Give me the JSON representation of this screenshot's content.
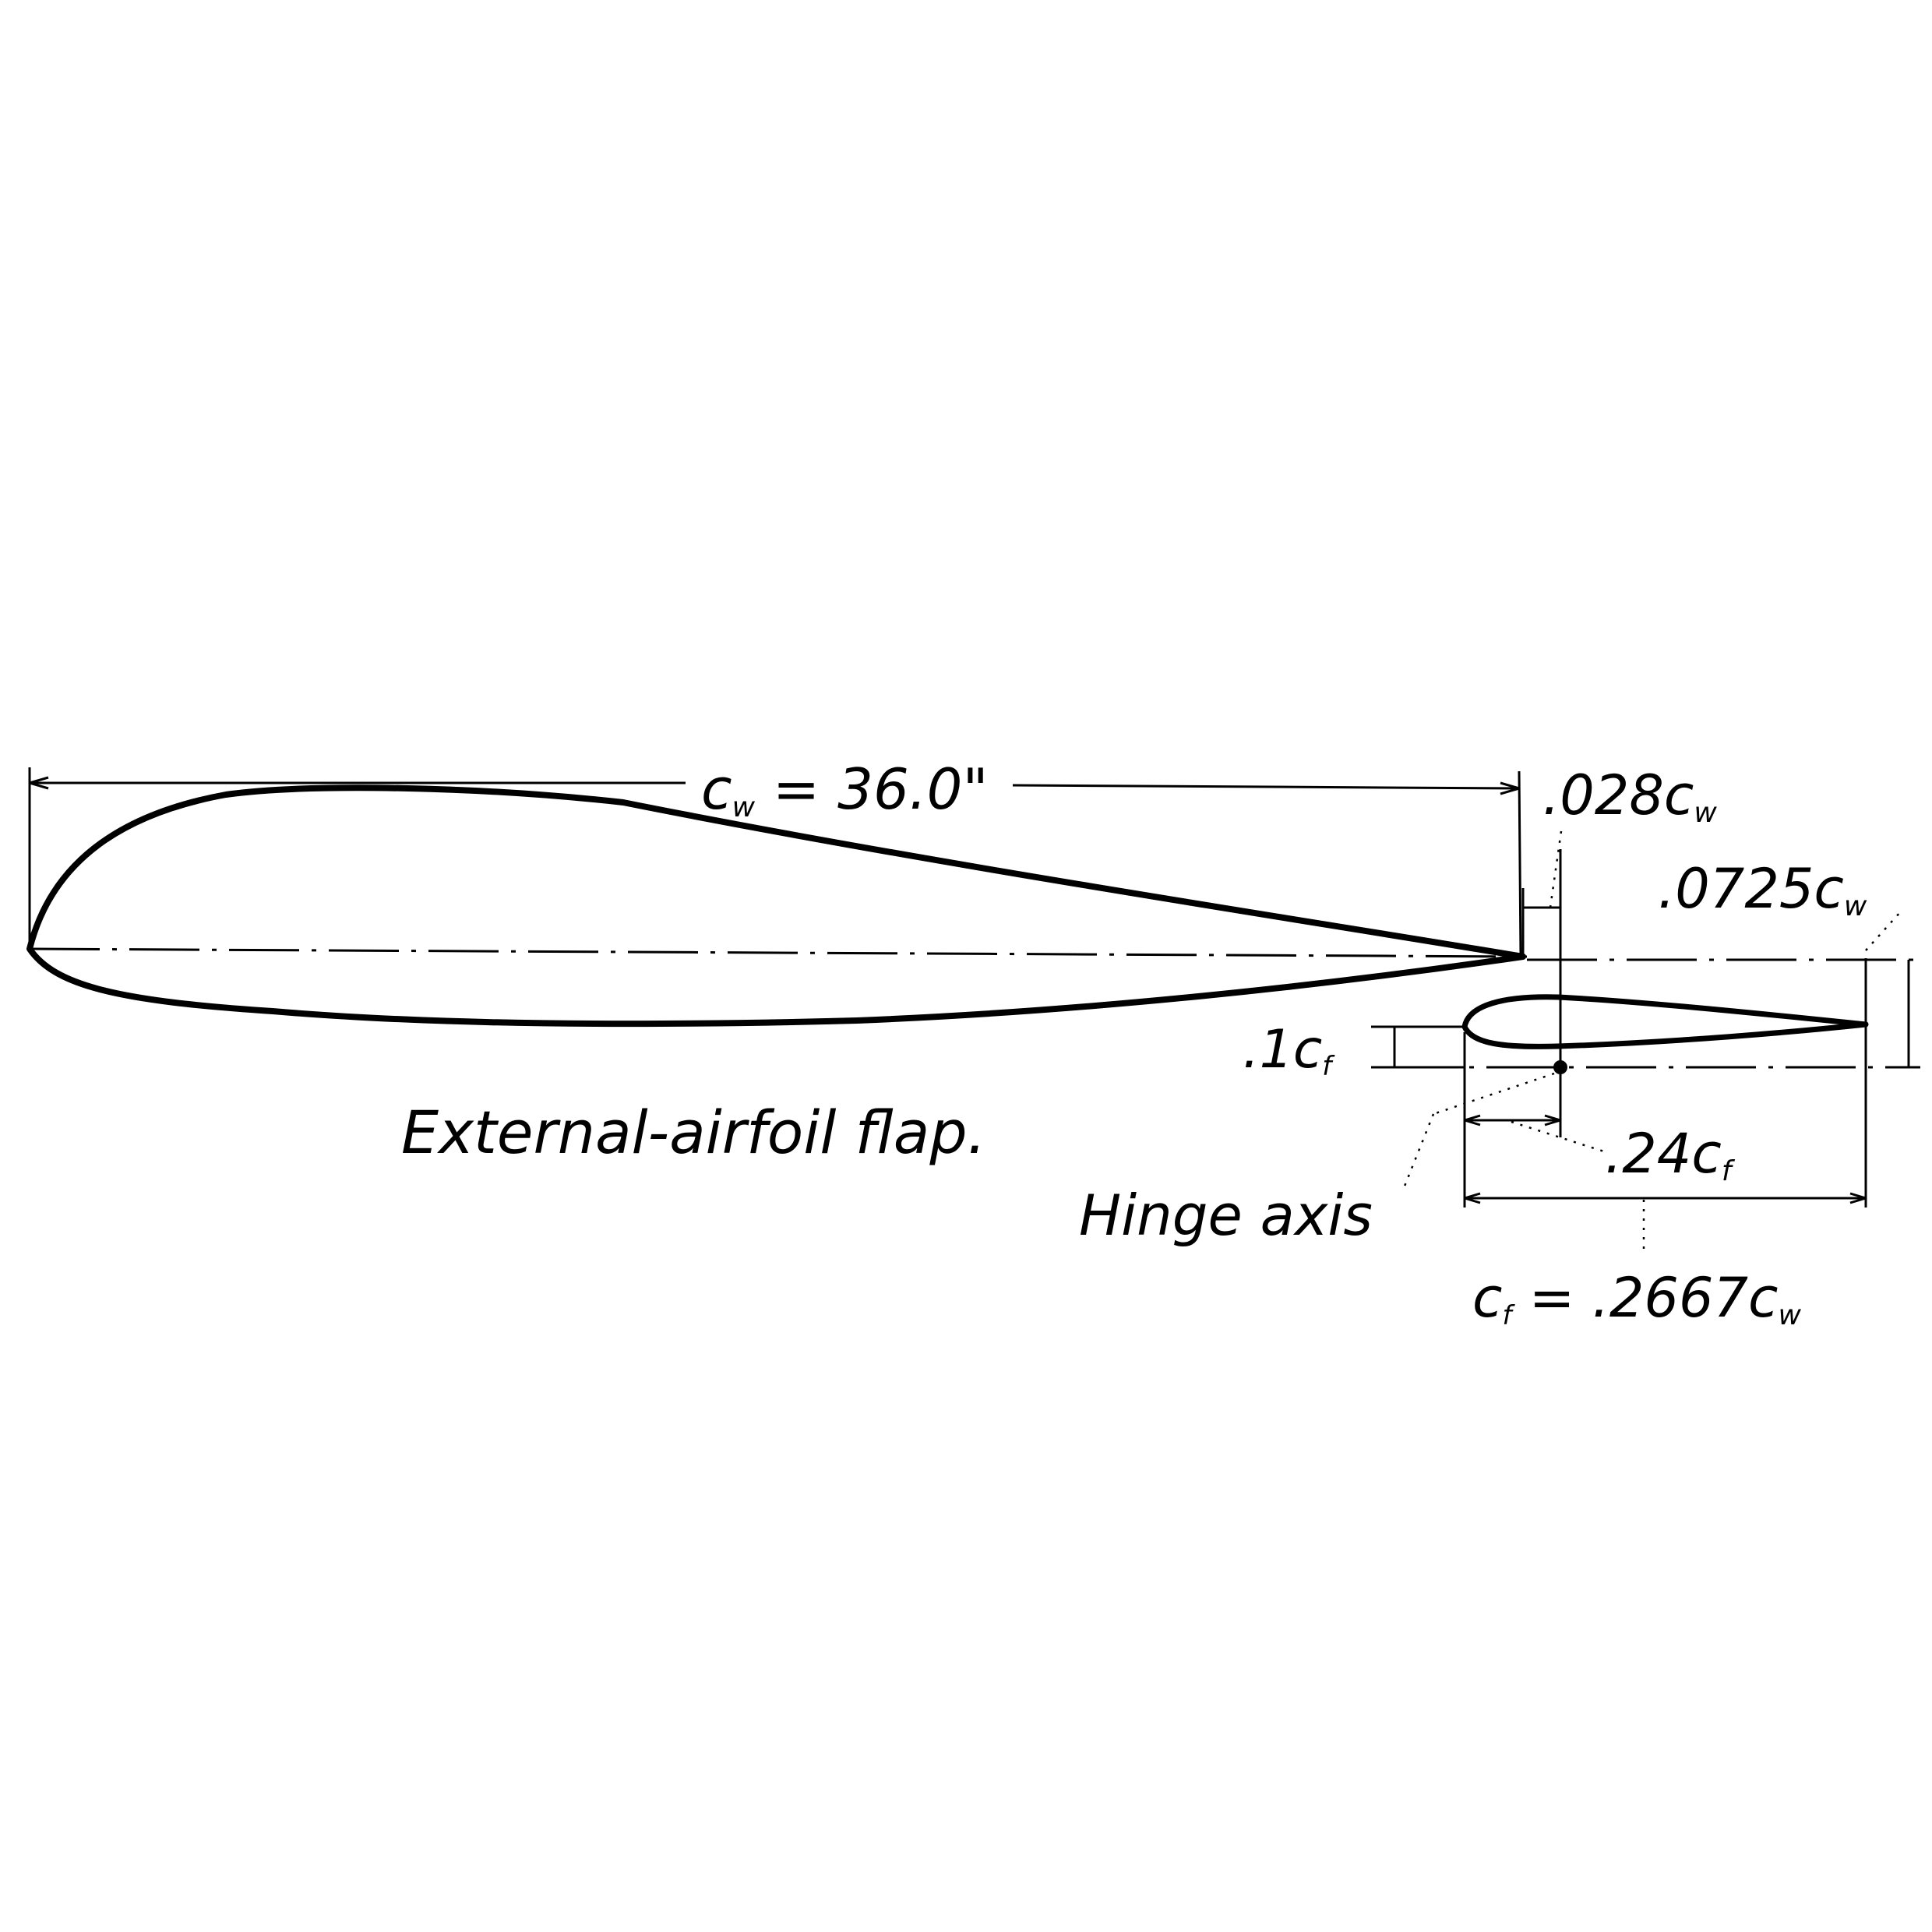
{
  "labels": {
    "main_chord_symbol": "c",
    "main_chord_subscript": "w",
    "main_chord_value": " = 36.0\"",
    "gap_vertical": ".028c",
    "gap_vertical_sub": "w",
    "gap_horizontal": ".0725c",
    "gap_horizontal_sub": "w",
    "flap_thickness": ".1c",
    "flap_thickness_sub": "f",
    "hinge_location": ".24c",
    "hinge_location_sub": "f",
    "flap_chord_symbol": "c",
    "flap_chord_symbol_sub": "f",
    "flap_chord_value": " = .2667c",
    "flap_chord_value_sub": "w",
    "caption": "External-airfoil flap.",
    "hinge_axis": "Hinge axis"
  }
}
